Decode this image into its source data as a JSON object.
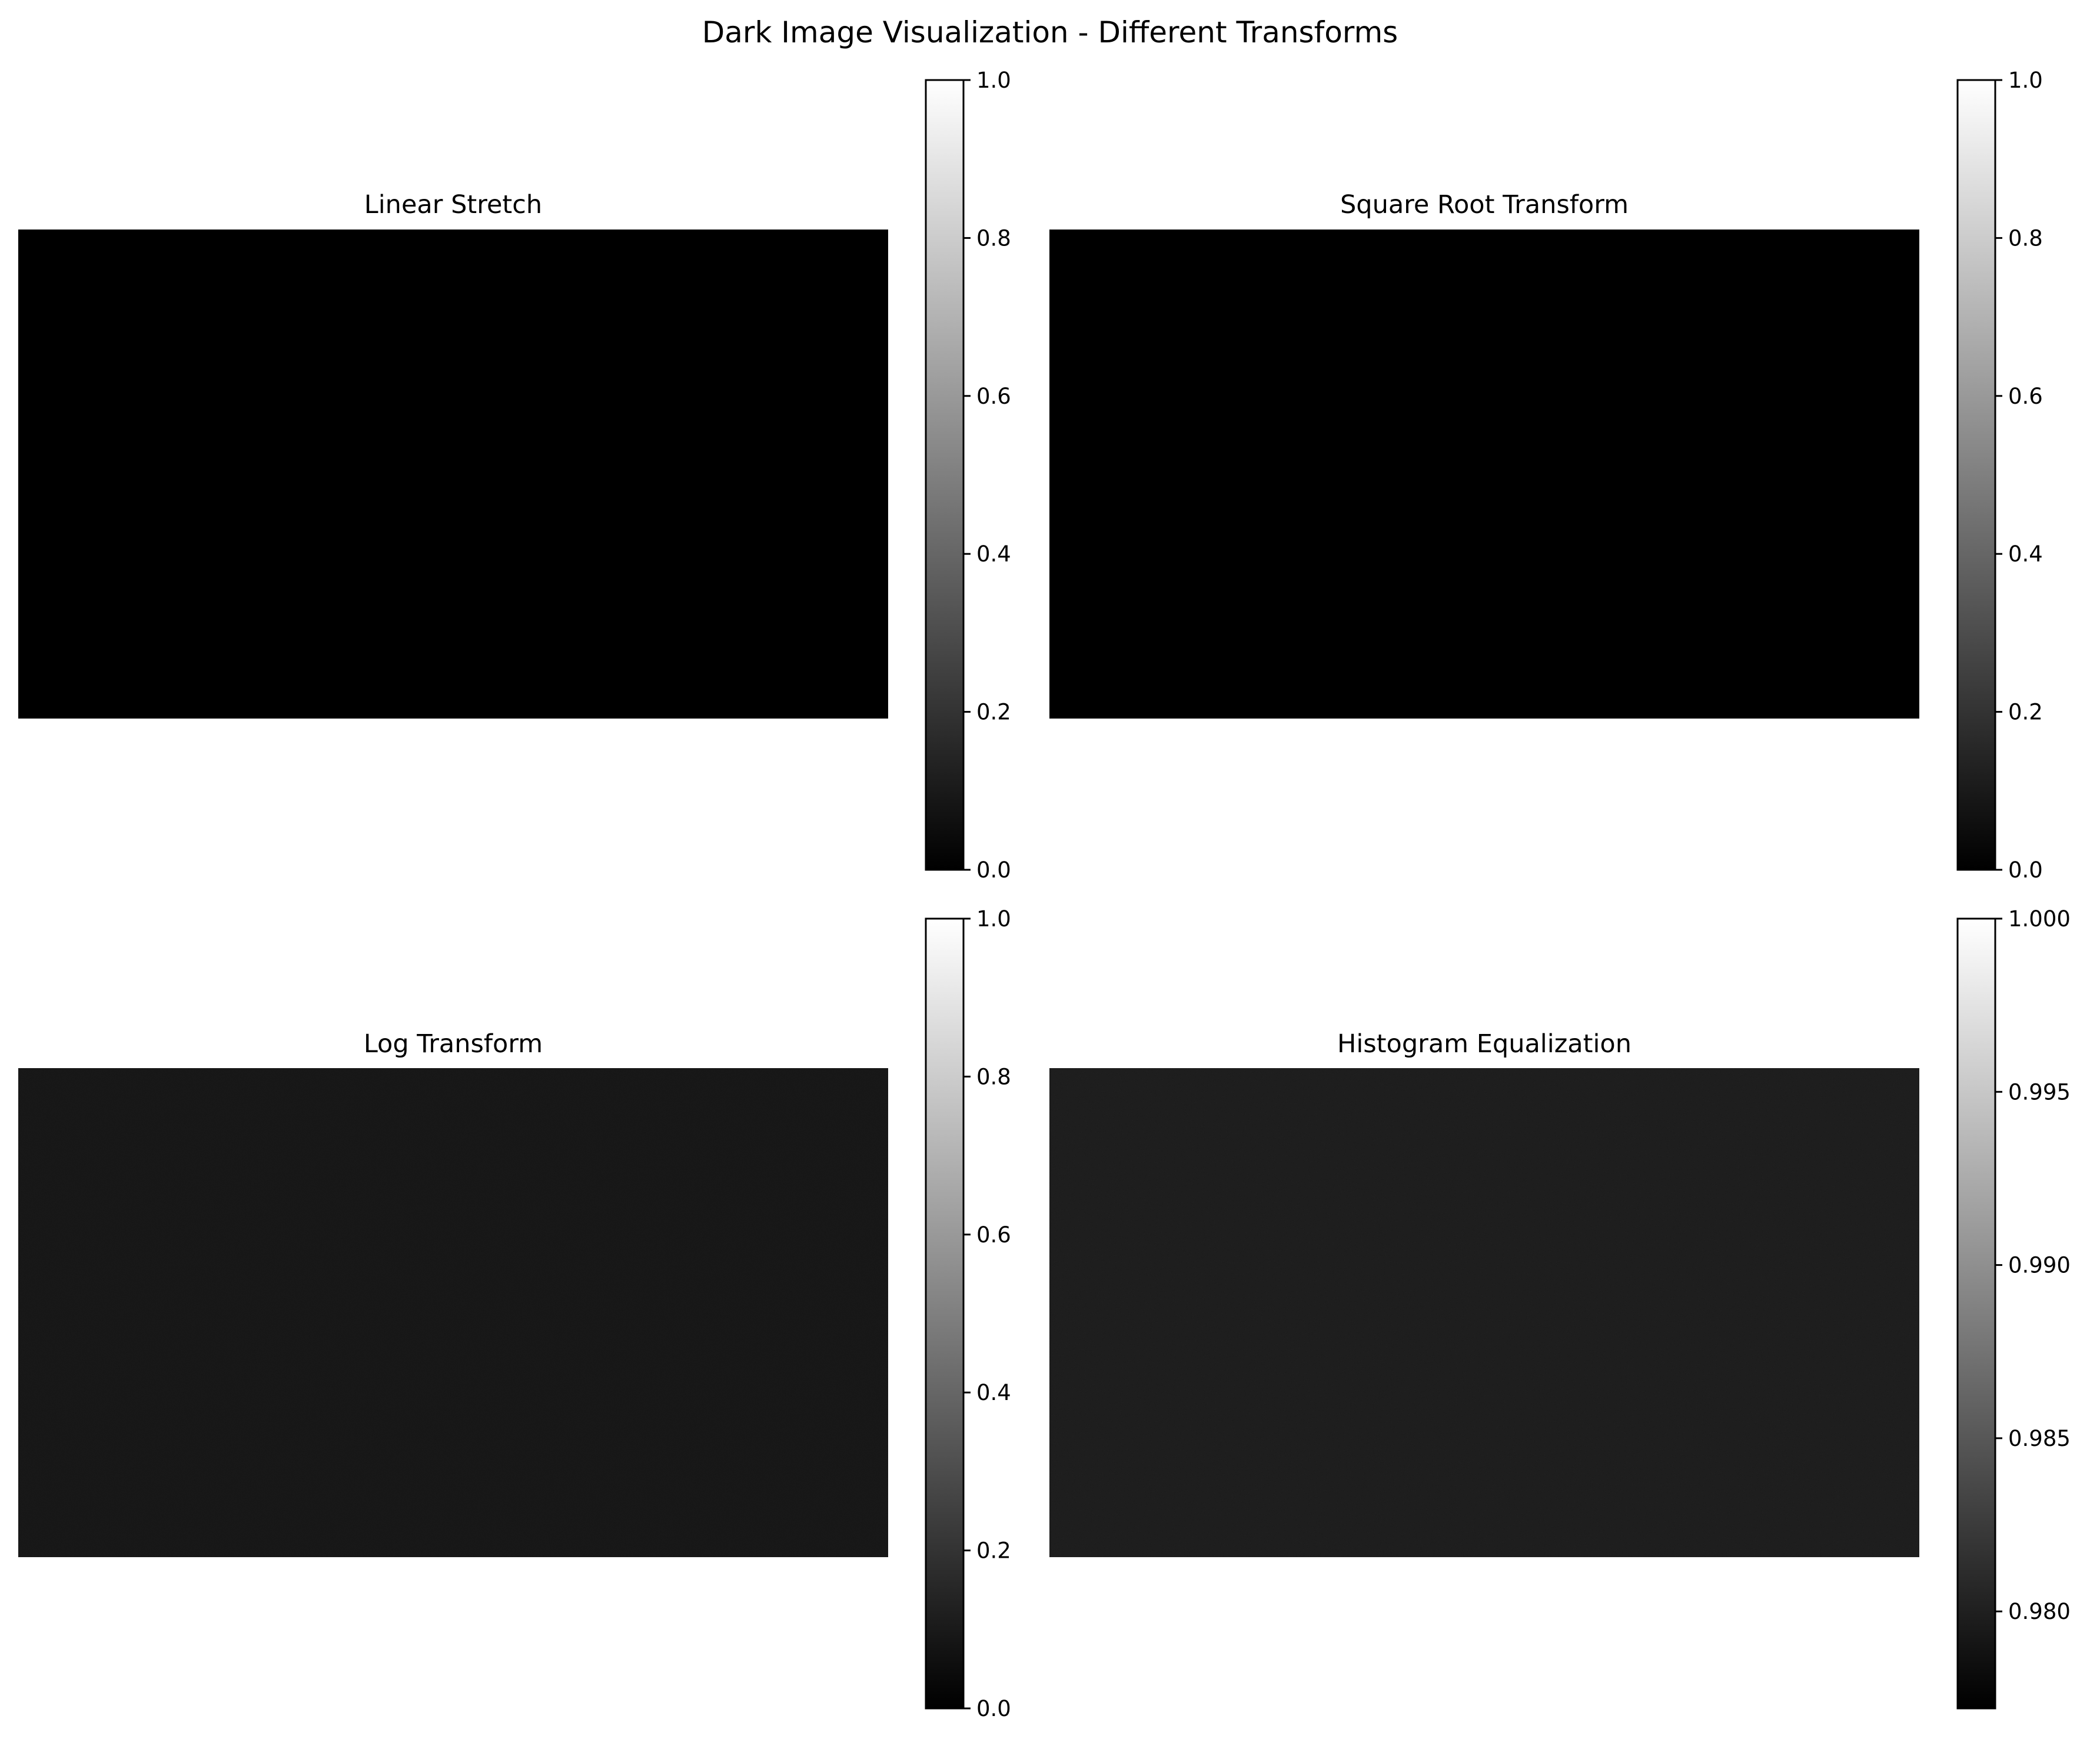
{
  "figure": {
    "title": "Dark Image Visualization - Different Transforms"
  },
  "chart_data": [
    {
      "type": "heatmap",
      "title": "Linear Stretch",
      "image_level": 0.0,
      "noise": 0.0,
      "colormap": "gray",
      "colorbar": {
        "range": [
          0.0,
          1.0
        ],
        "ticks": [
          0.0,
          0.2,
          0.4,
          0.6,
          0.8,
          1.0
        ],
        "tick_labels": [
          "0.0",
          "0.2",
          "0.4",
          "0.6",
          "0.8",
          "1.0"
        ]
      }
    },
    {
      "type": "heatmap",
      "title": "Square Root Transform",
      "image_level": 0.0,
      "noise": 0.0,
      "colormap": "gray",
      "colorbar": {
        "range": [
          0.0,
          1.0
        ],
        "ticks": [
          0.0,
          0.2,
          0.4,
          0.6,
          0.8,
          1.0
        ],
        "tick_labels": [
          "0.0",
          "0.2",
          "0.4",
          "0.6",
          "0.8",
          "1.0"
        ]
      }
    },
    {
      "type": "heatmap",
      "title": "Log Transform",
      "image_level": 0.05,
      "noise": 0.01,
      "colormap": "gray",
      "colorbar": {
        "range": [
          0.0,
          1.0
        ],
        "ticks": [
          0.0,
          0.2,
          0.4,
          0.6,
          0.8,
          1.0
        ],
        "tick_labels": [
          "0.0",
          "0.2",
          "0.4",
          "0.6",
          "0.8",
          "1.0"
        ]
      }
    },
    {
      "type": "heatmap",
      "title": "Histogram Equalization",
      "image_level": 0.979,
      "noise": 0.001,
      "colormap": "gray",
      "colorbar": {
        "range": [
          0.9772,
          1.0
        ],
        "ticks": [
          0.98,
          0.985,
          0.99,
          0.995,
          1.0
        ],
        "tick_labels": [
          "0.980",
          "0.985",
          "0.990",
          "0.995",
          "1.000"
        ]
      }
    }
  ]
}
